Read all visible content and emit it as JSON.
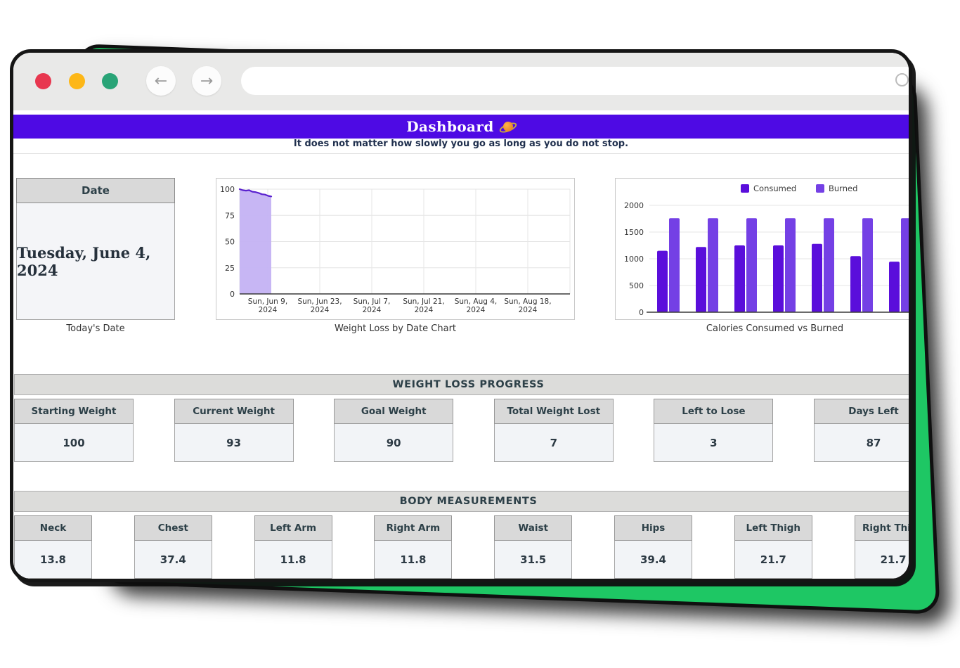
{
  "browser": {
    "traffic_lights": [
      "close",
      "minimize",
      "expand"
    ],
    "back_label": "←",
    "forward_label": "→",
    "url_value": ""
  },
  "header": {
    "title": "Dashboard",
    "title_icon": "ringed-planet",
    "subtitle": "It does not matter how slowly you go as long as you do not stop."
  },
  "date_card": {
    "header": "Date",
    "value": "Tuesday, June 4, 2024",
    "caption": "Today's Date"
  },
  "chart_data": [
    {
      "type": "area",
      "caption": "Weight Loss by Date Chart",
      "ylim": [
        0,
        100
      ],
      "yticks": [
        0,
        25,
        50,
        75,
        100
      ],
      "x_ticks": [
        [
          "Sun, Jun 9,",
          "2024"
        ],
        [
          "Sun, Jun 23,",
          "2024"
        ],
        [
          "Sun, Jul 7,",
          "2024"
        ],
        [
          "Sun, Jul 21,",
          "2024"
        ],
        [
          "Sun, Aug 4,",
          "2024"
        ],
        [
          "Sun, Aug 18,",
          "2024"
        ]
      ],
      "values": [
        100,
        99,
        98.6,
        99,
        97.6,
        97.2,
        96.4,
        95.2,
        94.8,
        93.6,
        93
      ],
      "line_color": "#5a21cf",
      "fill_color": "#c4b2f3",
      "grid": true,
      "legend_position": "none"
    },
    {
      "type": "bar",
      "caption": "Calories Consumed vs Burned",
      "ylim": [
        0,
        2000
      ],
      "yticks": [
        0,
        500,
        1000,
        1500,
        2000
      ],
      "legend_position": "top",
      "series": [
        {
          "name": "Consumed",
          "color": "#5a0edb",
          "values": [
            1150,
            1220,
            1250,
            1250,
            1280,
            1050,
            945
          ]
        },
        {
          "name": "Burned",
          "color": "#7440e5",
          "values": [
            1760,
            1760,
            1760,
            1760,
            1760,
            1760,
            1760
          ]
        }
      ],
      "grid": true
    }
  ],
  "progress": {
    "title": "WEIGHT LOSS PROGRESS",
    "cards": [
      {
        "label": "Starting Weight",
        "value": "100"
      },
      {
        "label": "Current Weight",
        "value": "93"
      },
      {
        "label": "Goal Weight",
        "value": "90"
      },
      {
        "label": "Total Weight Lost",
        "value": "7"
      },
      {
        "label": "Left to Lose",
        "value": "3"
      },
      {
        "label": "Days Left",
        "value": "87"
      }
    ]
  },
  "measurements": {
    "title": "BODY MEASUREMENTS",
    "cards": [
      {
        "label": "Neck",
        "value": "13.8"
      },
      {
        "label": "Chest",
        "value": "37.4"
      },
      {
        "label": "Left Arm",
        "value": "11.8"
      },
      {
        "label": "Right Arm",
        "value": "11.8"
      },
      {
        "label": "Waist",
        "value": "31.5"
      },
      {
        "label": "Hips",
        "value": "39.4"
      },
      {
        "label": "Left Thigh",
        "value": "21.7"
      },
      {
        "label": "Right Thigh",
        "value": "21.7"
      }
    ]
  },
  "colors": {
    "header_bar": "#4e0ae4",
    "accent_green": "#1ec764",
    "consumed": "#5a0edb",
    "burned": "#7440e5",
    "traffic_red": "#e8374f",
    "traffic_yellow": "#fdb717",
    "traffic_green": "#29a477"
  }
}
